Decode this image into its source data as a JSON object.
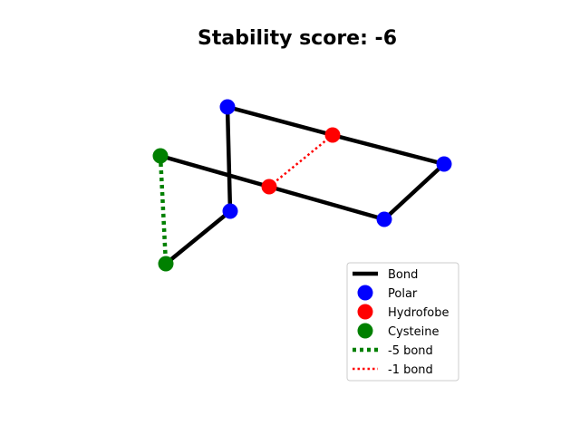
{
  "title": "Stability score: -6",
  "nodes": [
    {
      "id": "n1",
      "type": "polar"
    },
    {
      "id": "n2",
      "type": "hydrofobe"
    },
    {
      "id": "n3",
      "type": "polar"
    },
    {
      "id": "n4",
      "type": "polar"
    },
    {
      "id": "n5",
      "type": "hydrofobe"
    },
    {
      "id": "n6",
      "type": "cysteine"
    },
    {
      "id": "n7",
      "type": "polar"
    },
    {
      "id": "n8",
      "type": "cysteine"
    }
  ],
  "bonds": [
    {
      "from": "n1",
      "to": "n2"
    },
    {
      "from": "n2",
      "to": "n3"
    },
    {
      "from": "n3",
      "to": "n4"
    },
    {
      "from": "n4",
      "to": "n5"
    },
    {
      "from": "n5",
      "to": "n6"
    },
    {
      "from": "n1",
      "to": "n7"
    },
    {
      "from": "n7",
      "to": "n8"
    }
  ],
  "interactions": [
    {
      "from": "n6",
      "to": "n8",
      "kind": "-5 bond"
    },
    {
      "from": "n2",
      "to": "n5",
      "kind": "-1 bond"
    }
  ],
  "colors": {
    "polar": "#0000ff",
    "hydrofobe": "#ff0000",
    "cysteine": "#008000",
    "bond": "#000000",
    "minus5": "#008000",
    "minus1": "#ff0000"
  },
  "legend": {
    "items": [
      {
        "key": "bond",
        "label": "Bond",
        "symbol": "line-solid",
        "color": "#000000"
      },
      {
        "key": "polar",
        "label": "Polar",
        "symbol": "dot",
        "color": "#0000ff"
      },
      {
        "key": "hydrofobe",
        "label": "Hydrofobe",
        "symbol": "dot",
        "color": "#ff0000"
      },
      {
        "key": "cysteine",
        "label": "Cysteine",
        "symbol": "dot",
        "color": "#008000"
      },
      {
        "key": "minus5",
        "label": "-5 bond",
        "symbol": "line-dotted-thick",
        "color": "#008000"
      },
      {
        "key": "minus1",
        "label": "-1 bond",
        "symbol": "line-dotted",
        "color": "#ff0000"
      }
    ]
  }
}
